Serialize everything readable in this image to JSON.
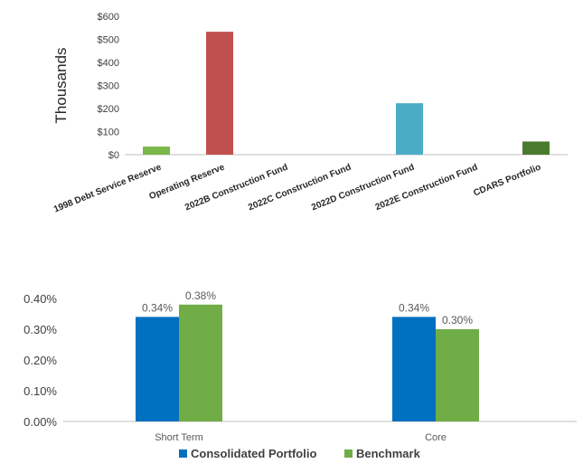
{
  "chart_data": [
    {
      "type": "bar",
      "title": "",
      "ylabel": "Thousands",
      "xlabel": "",
      "ylim": [
        0,
        600
      ],
      "yticks": [
        "$0",
        "$100",
        "$200",
        "$300",
        "$400",
        "$500",
        "$600"
      ],
      "categories": [
        "1998 Debt Service Reserve",
        "Operating Reserve",
        "2022B Construction Fund",
        "2022C Construction Fund",
        "2022D Construction Fund",
        "2022E Construction Fund",
        "CDARS Portfolio"
      ],
      "values": [
        35,
        533,
        0,
        0,
        223,
        0,
        57
      ],
      "colors": [
        "#7ab648",
        "#c0504d",
        "#7ab648",
        "#7ab648",
        "#4bacc6",
        "#7ab648",
        "#4a7a2e"
      ],
      "grid": false,
      "legend": "none"
    },
    {
      "type": "bar",
      "title": "",
      "xlabel": "",
      "ylabel": "",
      "ylim": [
        0,
        0.4
      ],
      "yticks": [
        "0.00%",
        "0.10%",
        "0.20%",
        "0.30%",
        "0.40%"
      ],
      "categories": [
        "Short Term",
        "Core"
      ],
      "series": [
        {
          "name": "Consolidated Portfolio",
          "values": [
            0.34,
            0.34
          ],
          "labels": [
            "0.34%",
            "0.34%"
          ],
          "color": "#0070c0"
        },
        {
          "name": "Benchmark",
          "values": [
            0.38,
            0.3
          ],
          "labels": [
            "0.38%",
            "0.30%"
          ],
          "color": "#70ad47"
        }
      ],
      "grid": false,
      "legend": "bottom"
    }
  ]
}
